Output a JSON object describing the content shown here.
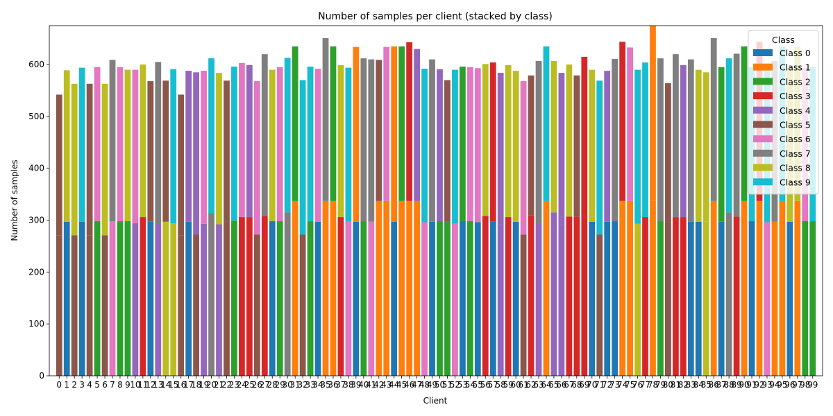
{
  "chart_data": {
    "type": "bar",
    "stacked": true,
    "title": "Number of samples per client (stacked by class)",
    "xlabel": "Client",
    "ylabel": "Number of samples",
    "ylim": [
      0,
      675
    ],
    "yticks": [
      0,
      100,
      200,
      300,
      400,
      500,
      600
    ],
    "x": [
      0,
      1,
      2,
      3,
      4,
      5,
      6,
      7,
      8,
      9,
      10,
      11,
      12,
      13,
      14,
      15,
      16,
      17,
      18,
      19,
      20,
      21,
      22,
      23,
      24,
      25,
      26,
      27,
      28,
      29,
      30,
      31,
      32,
      33,
      34,
      35,
      36,
      37,
      38,
      39,
      40,
      41,
      42,
      43,
      44,
      45,
      46,
      47,
      48,
      49,
      50,
      51,
      52,
      53,
      54,
      55,
      56,
      57,
      58,
      59,
      60,
      61,
      62,
      63,
      64,
      65,
      66,
      67,
      68,
      69,
      70,
      71,
      72,
      73,
      74,
      75,
      76,
      77,
      78,
      79,
      80,
      81,
      82,
      83,
      84,
      85,
      86,
      87,
      88,
      89,
      90,
      91,
      92,
      93,
      94,
      95,
      96,
      97,
      98,
      99
    ],
    "x_tick_labels": [
      "0",
      "1",
      "2",
      "3",
      "4",
      "5",
      "6",
      "7",
      "8",
      "9",
      "10",
      "11",
      "12",
      "13",
      "14",
      "15",
      "16",
      "17",
      "18",
      "19",
      "20",
      "21",
      "22",
      "23",
      "24",
      "25",
      "26",
      "27",
      "28",
      "29",
      "30",
      "31",
      "32",
      "33",
      "34",
      "35",
      "36",
      "37",
      "38",
      "39",
      "40",
      "41",
      "42",
      "43",
      "44",
      "45",
      "46",
      "47",
      "48",
      "49",
      "50",
      "51",
      "52",
      "53",
      "54",
      "55",
      "56",
      "57",
      "58",
      "59",
      "60",
      "61",
      "62",
      "63",
      "64",
      "65",
      "66",
      "67",
      "68",
      "69",
      "70",
      "71",
      "72",
      "73",
      "74",
      "75",
      "76",
      "77",
      "78",
      "79",
      "80",
      "81",
      "82",
      "83",
      "84",
      "85",
      "86",
      "87",
      "88",
      "89",
      "90",
      "91",
      "92",
      "93",
      "94",
      "95",
      "96",
      "97",
      "98",
      "99"
    ],
    "legend": {
      "title": "Class",
      "position": "top-right",
      "entries": [
        "Class 0",
        "Class 1",
        "Class 2",
        "Class 3",
        "Class 4",
        "Class 5",
        "Class 6",
        "Class 7",
        "Class 8",
        "Class 9"
      ]
    },
    "colors": [
      "#1f77b4",
      "#ff7f0e",
      "#2ca02c",
      "#d62728",
      "#9467bd",
      "#8c564b",
      "#e377c2",
      "#7f7f7f",
      "#bcbd22",
      "#17becf"
    ],
    "bars": [
      {
        "bottom_class": 5,
        "bottom": 271,
        "top_class": 5,
        "top": 271
      },
      {
        "bottom_class": 0,
        "bottom": 297,
        "top_class": 8,
        "top": 292
      },
      {
        "bottom_class": 5,
        "bottom": 271,
        "top_class": 8,
        "top": 292
      },
      {
        "bottom_class": 0,
        "bottom": 297,
        "top_class": 9,
        "top": 297
      },
      {
        "bottom_class": 5,
        "bottom": 271,
        "top_class": 5,
        "top": 292
      },
      {
        "bottom_class": 2,
        "bottom": 298,
        "top_class": 6,
        "top": 297
      },
      {
        "bottom_class": 5,
        "bottom": 271,
        "top_class": 8,
        "top": 292
      },
      {
        "bottom_class": 6,
        "bottom": 298,
        "top_class": 7,
        "top": 311
      },
      {
        "bottom_class": 2,
        "bottom": 298,
        "top_class": 6,
        "top": 297
      },
      {
        "bottom_class": 2,
        "bottom": 298,
        "top_class": 8,
        "top": 292
      },
      {
        "bottom_class": 4,
        "bottom": 294,
        "top_class": 6,
        "top": 296
      },
      {
        "bottom_class": 3,
        "bottom": 306,
        "top_class": 8,
        "top": 294
      },
      {
        "bottom_class": 0,
        "bottom": 297,
        "top_class": 5,
        "top": 271
      },
      {
        "bottom_class": 4,
        "bottom": 294,
        "top_class": 7,
        "top": 311
      },
      {
        "bottom_class": 8,
        "bottom": 297,
        "top_class": 5,
        "top": 272
      },
      {
        "bottom_class": 8,
        "bottom": 294,
        "top_class": 9,
        "top": 297
      },
      {
        "bottom_class": 5,
        "bottom": 271,
        "top_class": 5,
        "top": 271
      },
      {
        "bottom_class": 0,
        "bottom": 297,
        "top_class": 4,
        "top": 291
      },
      {
        "bottom_class": 5,
        "bottom": 272,
        "top_class": 4,
        "top": 313
      },
      {
        "bottom_class": 4,
        "bottom": 293,
        "top_class": 6,
        "top": 295
      },
      {
        "bottom_class": 7,
        "bottom": 314,
        "top_class": 9,
        "top": 298
      },
      {
        "bottom_class": 4,
        "bottom": 292,
        "top_class": 8,
        "top": 292
      },
      {
        "bottom_class": 5,
        "bottom": 298,
        "top_class": 5,
        "top": 271
      },
      {
        "bottom_class": 2,
        "bottom": 299,
        "top_class": 9,
        "top": 297
      },
      {
        "bottom_class": 3,
        "bottom": 306,
        "top_class": 6,
        "top": 297
      },
      {
        "bottom_class": 3,
        "bottom": 306,
        "top_class": 4,
        "top": 293
      },
      {
        "bottom_class": 5,
        "bottom": 272,
        "top_class": 6,
        "top": 296
      },
      {
        "bottom_class": 3,
        "bottom": 308,
        "top_class": 7,
        "top": 312
      },
      {
        "bottom_class": 0,
        "bottom": 298,
        "top_class": 8,
        "top": 292
      },
      {
        "bottom_class": 2,
        "bottom": 298,
        "top_class": 6,
        "top": 297
      },
      {
        "bottom_class": 7,
        "bottom": 315,
        "top_class": 9,
        "top": 298
      },
      {
        "bottom_class": 1,
        "bottom": 337,
        "top_class": 2,
        "top": 298
      },
      {
        "bottom_class": 5,
        "bottom": 272,
        "top_class": 9,
        "top": 298
      },
      {
        "bottom_class": 2,
        "bottom": 298,
        "top_class": 9,
        "top": 298
      },
      {
        "bottom_class": 0,
        "bottom": 297,
        "top_class": 6,
        "top": 295
      },
      {
        "bottom_class": 1,
        "bottom": 337,
        "top_class": 7,
        "top": 314
      },
      {
        "bottom_class": 1,
        "bottom": 337,
        "top_class": 2,
        "top": 298
      },
      {
        "bottom_class": 3,
        "bottom": 306,
        "top_class": 8,
        "top": 293
      },
      {
        "bottom_class": 6,
        "bottom": 297,
        "top_class": 9,
        "top": 297
      },
      {
        "bottom_class": 0,
        "bottom": 297,
        "top_class": 1,
        "top": 337
      },
      {
        "bottom_class": 2,
        "bottom": 298,
        "top_class": 7,
        "top": 314
      },
      {
        "bottom_class": 6,
        "bottom": 297,
        "top_class": 7,
        "top": 313
      },
      {
        "bottom_class": 1,
        "bottom": 337,
        "top_class": 5,
        "top": 272
      },
      {
        "bottom_class": 1,
        "bottom": 337,
        "top_class": 6,
        "top": 297
      },
      {
        "bottom_class": 0,
        "bottom": 297,
        "top_class": 1,
        "top": 338
      },
      {
        "bottom_class": 1,
        "bottom": 337,
        "top_class": 2,
        "top": 298
      },
      {
        "bottom_class": 1,
        "bottom": 337,
        "top_class": 3,
        "top": 306
      },
      {
        "bottom_class": 1,
        "bottom": 337,
        "top_class": 4,
        "top": 293
      },
      {
        "bottom_class": 6,
        "bottom": 296,
        "top_class": 9,
        "top": 296
      },
      {
        "bottom_class": 0,
        "bottom": 297,
        "top_class": 7,
        "top": 313
      },
      {
        "bottom_class": 2,
        "bottom": 298,
        "top_class": 4,
        "top": 293
      },
      {
        "bottom_class": 2,
        "bottom": 298,
        "top_class": 5,
        "top": 272
      },
      {
        "bottom_class": 6,
        "bottom": 293,
        "top_class": 9,
        "top": 297
      },
      {
        "bottom_class": 0,
        "bottom": 298,
        "top_class": 2,
        "top": 298
      },
      {
        "bottom_class": 2,
        "bottom": 298,
        "top_class": 6,
        "top": 297
      },
      {
        "bottom_class": 0,
        "bottom": 296,
        "top_class": 6,
        "top": 297
      },
      {
        "bottom_class": 3,
        "bottom": 308,
        "top_class": 8,
        "top": 293
      },
      {
        "bottom_class": 0,
        "bottom": 297,
        "top_class": 3,
        "top": 307
      },
      {
        "bottom_class": 4,
        "bottom": 291,
        "top_class": 4,
        "top": 293
      },
      {
        "bottom_class": 3,
        "bottom": 306,
        "top_class": 8,
        "top": 293
      },
      {
        "bottom_class": 0,
        "bottom": 297,
        "top_class": 8,
        "top": 291
      },
      {
        "bottom_class": 5,
        "bottom": 272,
        "top_class": 6,
        "top": 296
      },
      {
        "bottom_class": 3,
        "bottom": 309,
        "top_class": 5,
        "top": 270
      },
      {
        "bottom_class": 4,
        "bottom": 294,
        "top_class": 7,
        "top": 313
      },
      {
        "bottom_class": 1,
        "bottom": 337,
        "top_class": 9,
        "top": 298
      },
      {
        "bottom_class": 4,
        "bottom": 315,
        "top_class": 8,
        "top": 292
      },
      {
        "bottom_class": 4,
        "bottom": 292,
        "top_class": 4,
        "top": 292
      },
      {
        "bottom_class": 3,
        "bottom": 307,
        "top_class": 8,
        "top": 293
      },
      {
        "bottom_class": 3,
        "bottom": 307,
        "top_class": 5,
        "top": 272
      },
      {
        "bottom_class": 3,
        "bottom": 308,
        "top_class": 3,
        "top": 307
      },
      {
        "bottom_class": 0,
        "bottom": 297,
        "top_class": 8,
        "top": 293
      },
      {
        "bottom_class": 5,
        "bottom": 272,
        "top_class": 9,
        "top": 297
      },
      {
        "bottom_class": 0,
        "bottom": 297,
        "top_class": 4,
        "top": 291
      },
      {
        "bottom_class": 0,
        "bottom": 298,
        "top_class": 7,
        "top": 313
      },
      {
        "bottom_class": 1,
        "bottom": 337,
        "top_class": 3,
        "top": 307
      },
      {
        "bottom_class": 1,
        "bottom": 337,
        "top_class": 6,
        "top": 296
      },
      {
        "bottom_class": 8,
        "bottom": 293,
        "top_class": 9,
        "top": 297
      },
      {
        "bottom_class": 3,
        "bottom": 306,
        "top_class": 9,
        "top": 298
      },
      {
        "bottom_class": 1,
        "bottom": 337,
        "top_class": 1,
        "top": 338
      },
      {
        "bottom_class": 2,
        "bottom": 298,
        "top_class": 7,
        "top": 314
      },
      {
        "bottom_class": 5,
        "bottom": 296,
        "top_class": 5,
        "top": 268
      },
      {
        "bottom_class": 3,
        "bottom": 306,
        "top_class": 7,
        "top": 314
      },
      {
        "bottom_class": 3,
        "bottom": 306,
        "top_class": 4,
        "top": 293
      },
      {
        "bottom_class": 0,
        "bottom": 297,
        "top_class": 7,
        "top": 313
      },
      {
        "bottom_class": 0,
        "bottom": 297,
        "top_class": 8,
        "top": 293
      },
      {
        "bottom_class": 8,
        "bottom": 297,
        "top_class": 8,
        "top": 288
      },
      {
        "bottom_class": 1,
        "bottom": 337,
        "top_class": 7,
        "top": 314
      },
      {
        "bottom_class": 0,
        "bottom": 297,
        "top_class": 2,
        "top": 298
      },
      {
        "bottom_class": 7,
        "bottom": 315,
        "top_class": 9,
        "top": 297
      },
      {
        "bottom_class": 3,
        "bottom": 307,
        "top_class": 7,
        "top": 314
      },
      {
        "bottom_class": 1,
        "bottom": 337,
        "top_class": 2,
        "top": 298
      },
      {
        "bottom_class": 0,
        "bottom": 298,
        "top_class": 9,
        "top": 297
      },
      {
        "bottom_class": 1,
        "bottom": 337,
        "top_class": 3,
        "top": 307
      },
      {
        "bottom_class": 6,
        "bottom": 296,
        "top_class": 9,
        "top": 298
      },
      {
        "bottom_class": 1,
        "bottom": 297,
        "top_class": 7,
        "top": 310
      },
      {
        "bottom_class": 1,
        "bottom": 337,
        "top_class": 9,
        "top": 298
      },
      {
        "bottom_class": 0,
        "bottom": 297,
        "top_class": 8,
        "top": 297
      },
      {
        "bottom_class": 1,
        "bottom": 337,
        "top_class": 8,
        "top": 297
      },
      {
        "bottom_class": 2,
        "bottom": 298,
        "top_class": 6,
        "top": 296
      },
      {
        "bottom_class": 2,
        "bottom": 298,
        "top_class": 9,
        "top": 297
      }
    ]
  }
}
